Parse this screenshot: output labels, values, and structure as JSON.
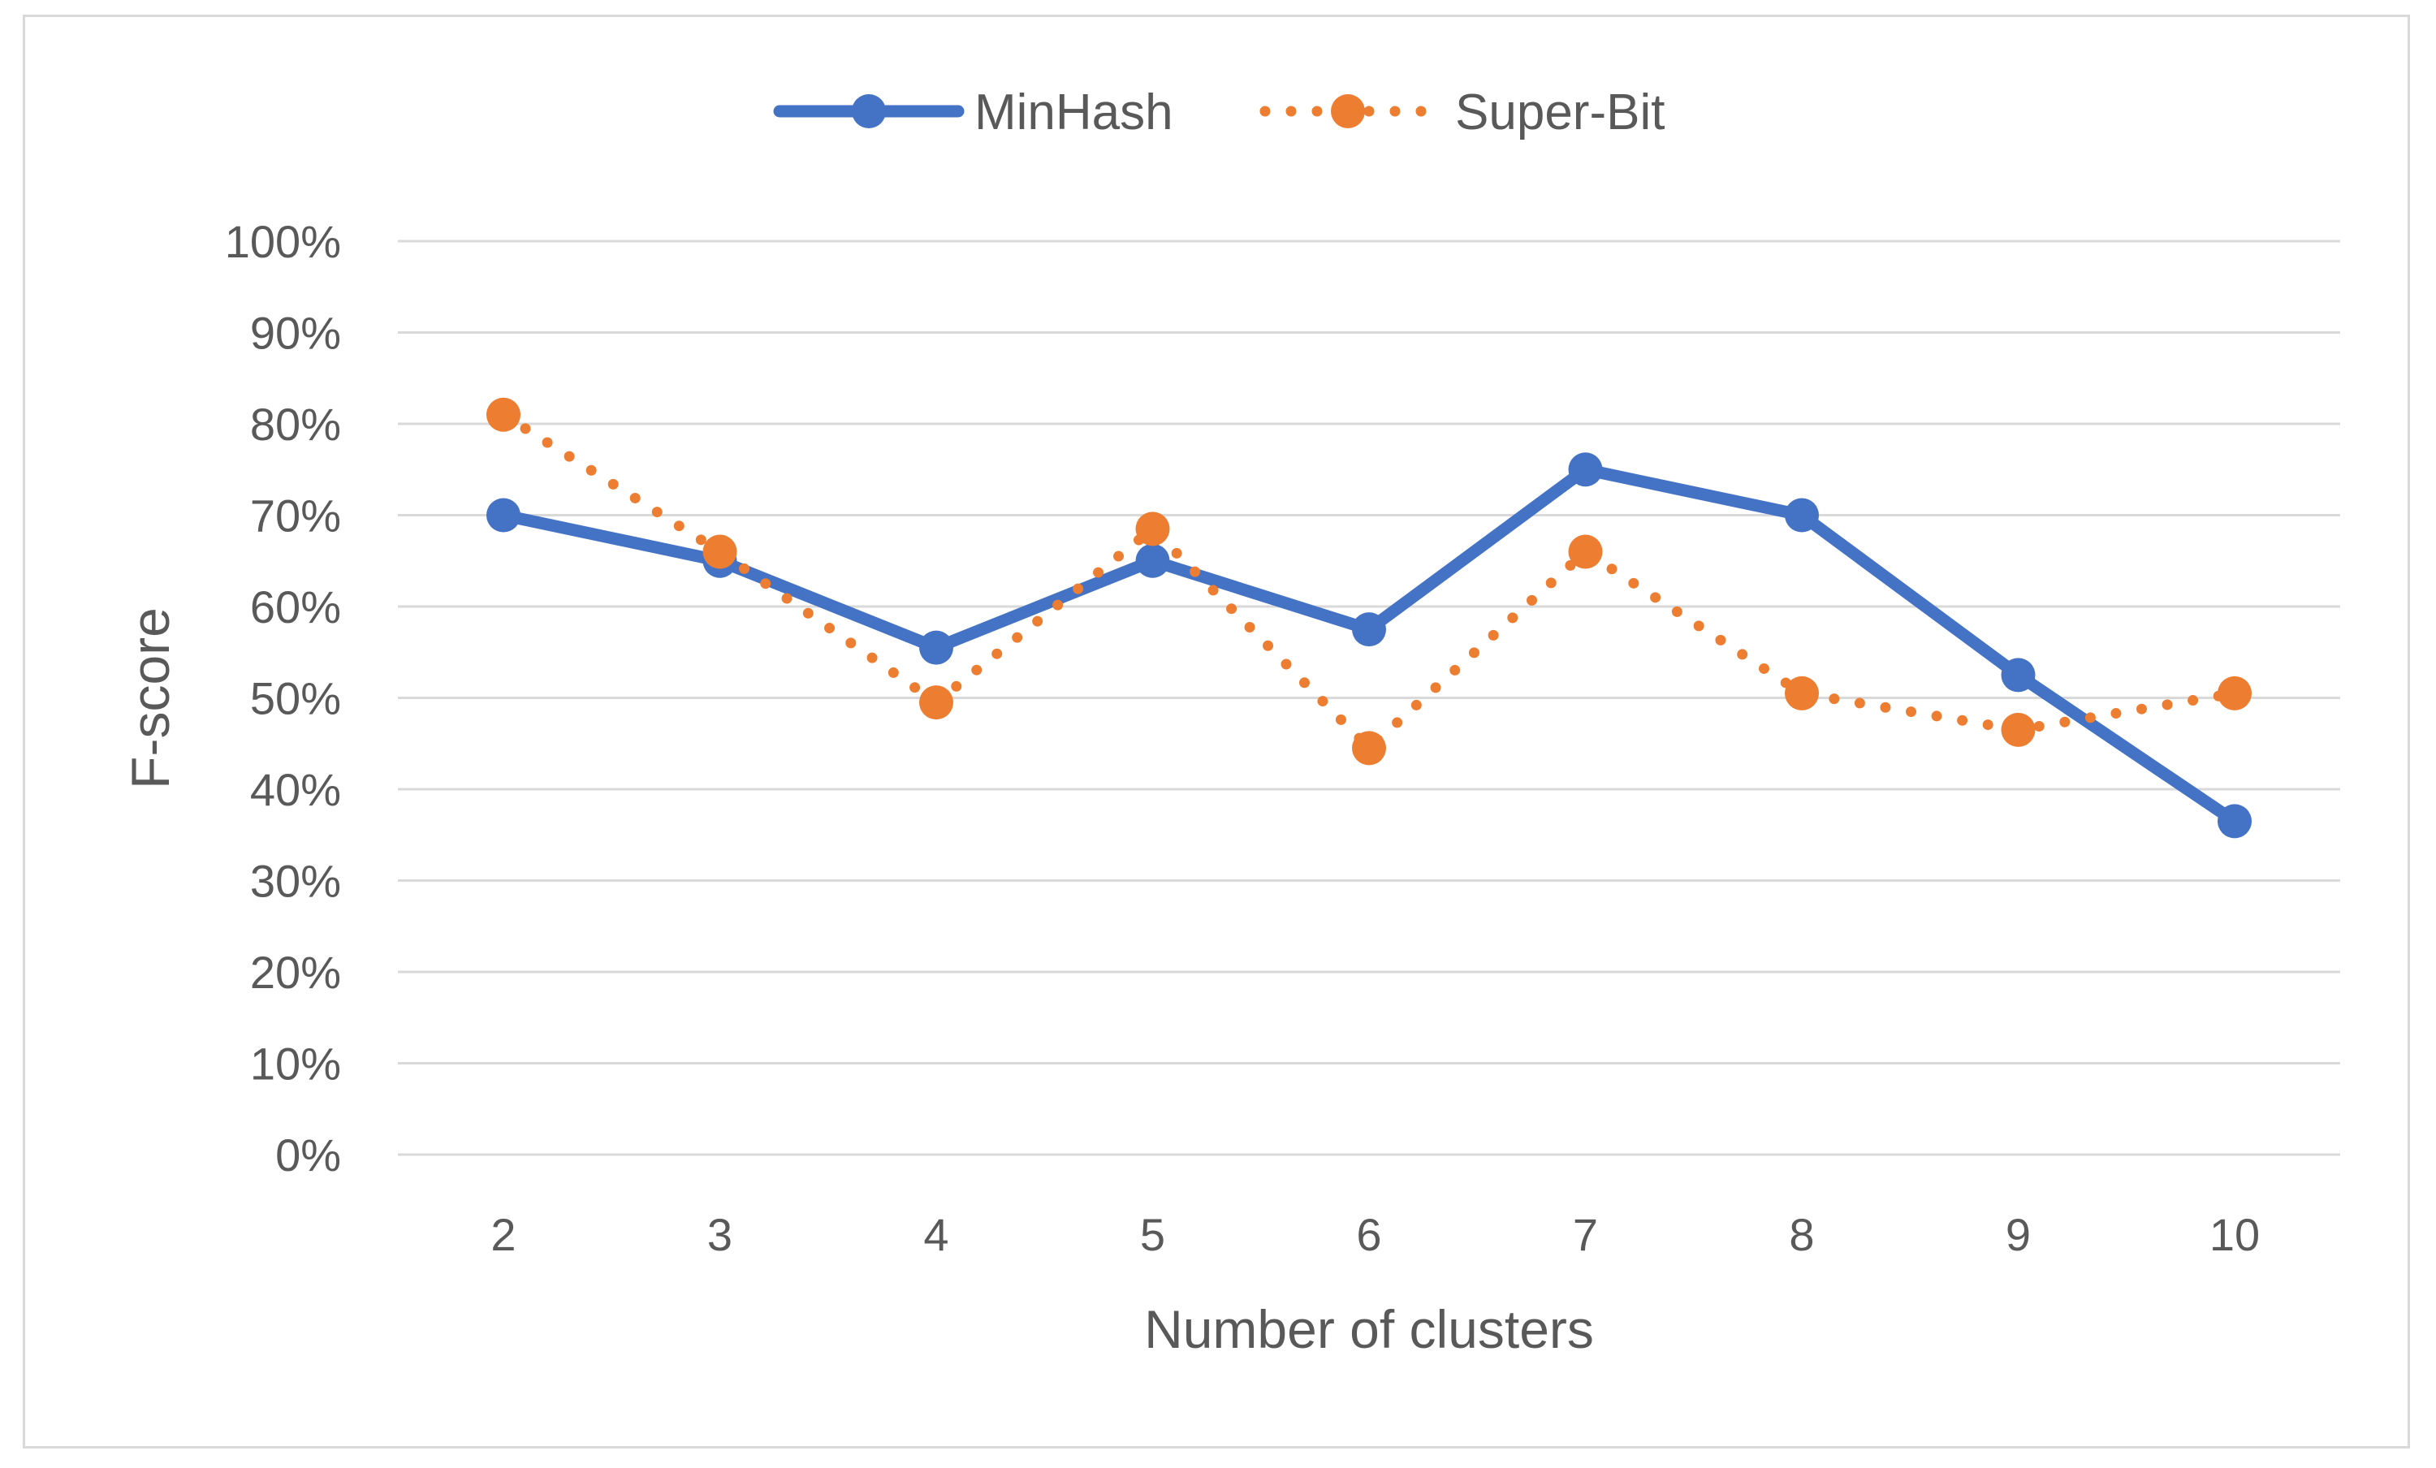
{
  "chart_data": {
    "type": "line",
    "title": "",
    "xlabel": "Number of clusters",
    "ylabel": "F-score",
    "categories": [
      "2",
      "3",
      "4",
      "5",
      "6",
      "7",
      "8",
      "9",
      "10"
    ],
    "ylim": [
      0,
      100
    ],
    "yticks": [
      0,
      10,
      20,
      30,
      40,
      50,
      60,
      70,
      80,
      90,
      100
    ],
    "ytick_labels": [
      "0%",
      "10%",
      "20%",
      "30%",
      "40%",
      "50%",
      "60%",
      "70%",
      "80%",
      "90%",
      "100%"
    ],
    "grid": true,
    "legend_position": "top-center",
    "series": [
      {
        "name": "MinHash",
        "style": "solid",
        "color": "#4472C4",
        "values": [
          70,
          65,
          55.5,
          65,
          57.5,
          75,
          70,
          52.5,
          36.5
        ]
      },
      {
        "name": "Super-Bit",
        "style": "dotted",
        "color": "#ED7D31",
        "values": [
          81,
          66,
          49.5,
          68.5,
          44.5,
          66,
          50.5,
          46.5,
          50.5
        ]
      }
    ]
  }
}
